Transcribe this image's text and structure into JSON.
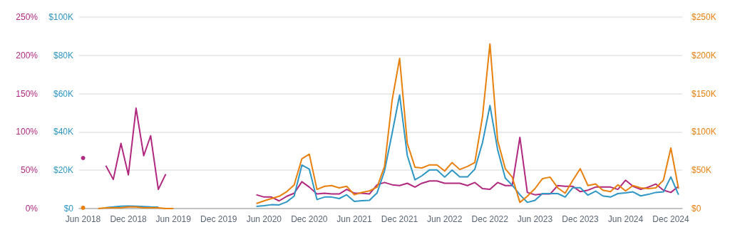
{
  "chart_data": {
    "type": "line",
    "grid": "y",
    "x": [
      "2018-06",
      "2018-07",
      "2018-08",
      "2018-09",
      "2018-10",
      "2018-11",
      "2018-12",
      "2019-01",
      "2019-02",
      "2019-03",
      "2019-04",
      "2019-05",
      "2019-06",
      "2019-07",
      "2019-08",
      "2019-09",
      "2019-10",
      "2019-11",
      "2019-12",
      "2020-01",
      "2020-02",
      "2020-03",
      "2020-04",
      "2020-05",
      "2020-06",
      "2020-07",
      "2020-08",
      "2020-09",
      "2020-10",
      "2020-11",
      "2020-12",
      "2021-01",
      "2021-02",
      "2021-03",
      "2021-04",
      "2021-05",
      "2021-06",
      "2021-07",
      "2021-08",
      "2021-09",
      "2021-10",
      "2021-11",
      "2021-12",
      "2022-01",
      "2022-02",
      "2022-03",
      "2022-04",
      "2022-05",
      "2022-06",
      "2022-07",
      "2022-08",
      "2022-09",
      "2022-10",
      "2022-11",
      "2022-12",
      "2023-01",
      "2023-02",
      "2023-03",
      "2023-04",
      "2023-05",
      "2023-06",
      "2023-07",
      "2023-08",
      "2023-09",
      "2023-10",
      "2023-11",
      "2023-12",
      "2024-01",
      "2024-02",
      "2024-03",
      "2024-04",
      "2024-05",
      "2024-06",
      "2024-07",
      "2024-08",
      "2024-09",
      "2024-10",
      "2024-11",
      "2024-12",
      "2025-01"
    ],
    "xlim": [
      "2018-05-16",
      "2025-01-16"
    ],
    "xticks": [
      {
        "value": "2018-06",
        "label": "Jun 2018"
      },
      {
        "value": "2018-12",
        "label": "Dec 2018"
      },
      {
        "value": "2019-06",
        "label": "Jun 2019"
      },
      {
        "value": "2019-12",
        "label": "Dec 2019"
      },
      {
        "value": "2020-06",
        "label": "Jun 2020"
      },
      {
        "value": "2020-12",
        "label": "Dec 2020"
      },
      {
        "value": "2021-06",
        "label": "Jun 2021"
      },
      {
        "value": "2021-12",
        "label": "Dec 2021"
      },
      {
        "value": "2022-06",
        "label": "Jun 2022"
      },
      {
        "value": "2022-12",
        "label": "Dec 2022"
      },
      {
        "value": "2023-06",
        "label": "Jun 2023"
      },
      {
        "value": "2023-12",
        "label": "Dec 2023"
      },
      {
        "value": "2024-06",
        "label": "Jun 2024"
      },
      {
        "value": "2024-12",
        "label": "Dec 2024"
      }
    ],
    "ylim": [
      0,
      250
    ],
    "yticks": [
      {
        "value": 0,
        "label": "0%"
      },
      {
        "value": 50,
        "label": "50%"
      },
      {
        "value": 100,
        "label": "100%"
      },
      {
        "value": 150,
        "label": "150%"
      },
      {
        "value": 200,
        "label": "200%"
      },
      {
        "value": 250,
        "label": "250%"
      }
    ],
    "y2lim": [
      0,
      100
    ],
    "y2ticks": [
      {
        "value": 0,
        "label": "$0"
      },
      {
        "value": 20,
        "label": "$20K"
      },
      {
        "value": 40,
        "label": "$40K"
      },
      {
        "value": 60,
        "label": "$60K"
      },
      {
        "value": 80,
        "label": "$80K"
      },
      {
        "value": 100,
        "label": "$100K"
      }
    ],
    "y3lim": [
      0,
      250
    ],
    "y3ticks": [
      {
        "value": 0,
        "label": "$0"
      },
      {
        "value": 50,
        "label": "$50K"
      },
      {
        "value": 100,
        "label": "$100K"
      },
      {
        "value": 150,
        "label": "$150K"
      },
      {
        "value": 200,
        "label": "$200K"
      },
      {
        "value": 250,
        "label": "$250K"
      }
    ],
    "series": [
      {
        "color": "#b0297f",
        "axis": "y",
        "values": [
          66,
          null,
          null,
          56,
          38,
          85,
          44,
          131,
          69,
          95,
          25,
          45,
          null,
          null,
          null,
          null,
          null,
          null,
          null,
          null,
          null,
          null,
          null,
          18,
          15,
          15,
          10,
          16,
          20,
          35,
          28,
          19,
          20,
          19,
          19,
          25,
          20,
          20,
          19,
          31,
          34,
          31,
          30,
          33,
          28,
          33,
          36,
          36,
          33,
          33,
          33,
          30,
          34,
          26,
          25,
          34,
          30,
          30,
          93,
          21,
          18,
          19,
          19,
          30,
          29,
          29,
          22,
          24,
          28,
          28,
          28,
          25,
          37,
          29,
          25,
          28,
          32,
          24,
          21,
          29
        ]
      },
      {
        "color": "#2e96c4",
        "axis": "y2",
        "values": [
          null,
          null,
          null,
          0.5,
          0.8,
          1.2,
          1.3,
          1.2,
          1.0,
          0.8,
          0.7,
          null,
          null,
          null,
          null,
          null,
          null,
          null,
          null,
          null,
          null,
          null,
          null,
          1.1,
          1.5,
          2.0,
          1.9,
          3.5,
          6.5,
          22.7,
          20.6,
          4.7,
          6.0,
          6.0,
          5.2,
          7.2,
          3.7,
          4.1,
          4.3,
          8.2,
          19.6,
          39.5,
          59.3,
          27.7,
          15.0,
          17.1,
          20.2,
          20.2,
          16.4,
          20.1,
          16.5,
          16.5,
          20.6,
          34.5,
          53.8,
          30.8,
          15.9,
          12.2,
          7.2,
          3.2,
          4.3,
          7.8,
          7.8,
          7.8,
          6.0,
          10.9,
          10.9,
          7.0,
          9.1,
          6.6,
          6.0,
          7.8,
          8.2,
          8.7,
          6.6,
          7.4,
          8.4,
          8.7,
          16.5,
          7.2
        ]
      },
      {
        "color": "#e8800e",
        "axis": "y3",
        "values": [
          1,
          null,
          0,
          1,
          1,
          1,
          2,
          2,
          1,
          1,
          1,
          0,
          0,
          null,
          null,
          null,
          null,
          null,
          null,
          null,
          null,
          null,
          null,
          6.5,
          10,
          13,
          16,
          22,
          31,
          65,
          71,
          25,
          29,
          30,
          27,
          29,
          18,
          21,
          23,
          28,
          55,
          142,
          196,
          85,
          54,
          53,
          57,
          57,
          49,
          60,
          51,
          55,
          60,
          120,
          215,
          89,
          52,
          41,
          8,
          16,
          26,
          39,
          41,
          27,
          20,
          37,
          52,
          30,
          32,
          24,
          22,
          31,
          23,
          30,
          27,
          26,
          27,
          37,
          79,
          26
        ]
      }
    ]
  }
}
